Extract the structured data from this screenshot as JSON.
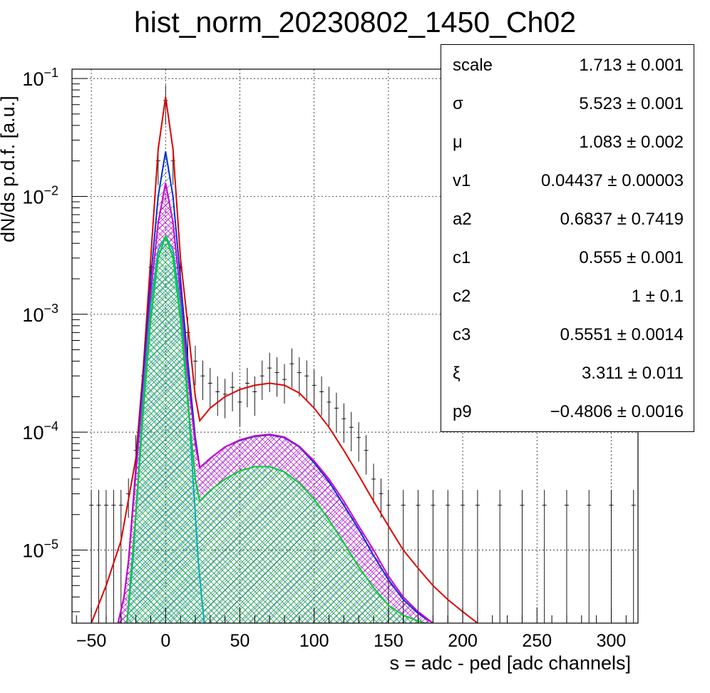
{
  "title": "hist_norm_20230802_1450_Ch02",
  "stats_box": [
    {
      "name": "scale",
      "value": "1.713 ± 0.001"
    },
    {
      "name": "σ",
      "value": "5.523 ± 0.001"
    },
    {
      "name": "μ",
      "value": "1.083 ± 0.002"
    },
    {
      "name": "v1",
      "value": "0.04437 ± 0.00003"
    },
    {
      "name": "a2",
      "value": "0.6837 ± 0.7419"
    },
    {
      "name": "c1",
      "value": "0.555 ± 0.001"
    },
    {
      "name": "c2",
      "value": "1 ± 0.1"
    },
    {
      "name": "c3",
      "value": "0.5551 ± 0.0014"
    },
    {
      "name": "ξ",
      "value": "3.311 ± 0.011"
    },
    {
      "name": "p9",
      "value": "−0.4806 ± 0.0016"
    }
  ],
  "chart_data": {
    "type": "line",
    "title": "hist_norm_20230802_1450_Ch02",
    "xlabel": "s = adc - ped [adc channels]",
    "ylabel": "dN/ds p.d.f. [a.u.]",
    "xlim": [
      -63,
      318
    ],
    "ylim": [
      2.4e-06,
      0.12
    ],
    "yscale": "log",
    "grid": true,
    "x_ticks": [
      -50,
      0,
      50,
      100,
      150,
      200,
      250,
      300
    ],
    "x_tick_labels": [
      "−50",
      "0",
      "50",
      "100",
      "150",
      "200",
      "250",
      "300"
    ],
    "y_ticks": [
      1e-05,
      0.0001,
      0.001,
      0.01,
      0.1
    ],
    "y_tick_labels": [
      {
        "base": "10",
        "exp": "−5"
      },
      {
        "base": "10",
        "exp": "−4"
      },
      {
        "base": "10",
        "exp": "−3"
      },
      {
        "base": "10",
        "exp": "−2"
      },
      {
        "base": "10",
        "exp": "−1"
      }
    ],
    "series": [
      {
        "color": "#e00000",
        "fill": "none",
        "x": [
          -50,
          -40,
          -30,
          -20,
          -15,
          -10,
          -5,
          0,
          5,
          10,
          15,
          20,
          23,
          30,
          40,
          50,
          60,
          70,
          80,
          90,
          100,
          110,
          120,
          130,
          140,
          150,
          160,
          170,
          180,
          190,
          200,
          210
        ],
        "y": [
          2.4e-06,
          5e-06,
          1.2e-05,
          6e-05,
          0.00035,
          0.003,
          0.025,
          0.07,
          0.025,
          0.003,
          0.0008,
          0.0002,
          0.000125,
          0.00016,
          0.0002,
          0.00023,
          0.00025,
          0.00026,
          0.00025,
          0.000215,
          0.00016,
          0.00011,
          7e-05,
          4.3e-05,
          2.6e-05,
          1.6e-05,
          1e-05,
          7e-06,
          5e-06,
          3.8e-06,
          3e-06,
          2.4e-06
        ]
      },
      {
        "color": "#0033cc",
        "fill": "#0033cc",
        "x": [
          -32,
          -28,
          -25,
          -20,
          -15,
          -10,
          -5,
          0,
          5,
          10,
          15,
          20,
          23,
          30,
          40,
          50,
          60,
          70,
          80,
          90,
          100,
          110,
          120,
          130,
          140,
          150,
          160,
          170,
          180
        ],
        "y": [
          2.4e-06,
          4e-06,
          8e-06,
          5e-05,
          0.0003,
          0.002,
          0.01,
          0.024,
          0.01,
          0.002,
          0.0004,
          9e-05,
          5e-05,
          6e-05,
          7.5e-05,
          8.5e-05,
          9.2e-05,
          9.5e-05,
          9e-05,
          7.5e-05,
          5.5e-05,
          3.8e-05,
          2.4e-05,
          1.5e-05,
          9e-06,
          5.6e-06,
          3.8e-06,
          2.9e-06,
          2.4e-06
        ]
      },
      {
        "color": "#cc00cc",
        "fill": "#cc00cc",
        "x": [
          -32,
          -28,
          -25,
          -20,
          -15,
          -10,
          -5,
          0,
          5,
          10,
          15,
          20,
          23,
          30,
          40,
          50,
          60,
          70,
          80,
          90,
          100,
          110,
          120,
          130,
          140,
          150,
          160,
          170,
          180
        ],
        "y": [
          2.4e-06,
          4e-06,
          8e-06,
          4.5e-05,
          0.00025,
          0.0015,
          0.006,
          0.013,
          0.006,
          0.0015,
          0.0003,
          8e-05,
          5e-05,
          6e-05,
          7.5e-05,
          8.6e-05,
          9.3e-05,
          9.6e-05,
          9.1e-05,
          7.6e-05,
          5.7e-05,
          4e-05,
          2.6e-05,
          1.6e-05,
          1e-05,
          6e-06,
          4e-06,
          3e-06,
          2.4e-06
        ]
      },
      {
        "color": "#00b0b0",
        "fill": "#00b0b0",
        "x": [
          -26,
          -22,
          -18,
          -15,
          -10,
          -5,
          0,
          5,
          10,
          15,
          18,
          22,
          26
        ],
        "y": [
          2.4e-06,
          8e-06,
          5e-05,
          0.0002,
          0.0012,
          0.0035,
          0.0046,
          0.0035,
          0.0012,
          0.0002,
          5e-05,
          8e-06,
          2.4e-06
        ]
      },
      {
        "color": "#00cc33",
        "fill": "#00cc33",
        "x": [
          -26,
          -20,
          -15,
          -10,
          -5,
          0,
          5,
          10,
          15,
          20,
          23,
          30,
          40,
          50,
          60,
          70,
          80,
          90,
          100,
          110,
          120,
          130,
          140,
          150,
          160,
          170,
          175
        ],
        "y": [
          2.4e-06,
          2e-05,
          0.00015,
          0.0009,
          0.003,
          0.0046,
          0.003,
          0.0009,
          0.00018,
          4e-05,
          2.6e-05,
          3.2e-05,
          4e-05,
          4.7e-05,
          5.1e-05,
          5.1e-05,
          4.6e-05,
          3.7e-05,
          2.7e-05,
          1.8e-05,
          1.15e-05,
          7.2e-06,
          4.8e-06,
          3.4e-06,
          2.8e-06,
          2.5e-06,
          2.4e-06
        ]
      }
    ],
    "data_points": {
      "color": "#000000",
      "x": [
        -50,
        -45,
        -40,
        -35,
        -30,
        -25,
        -20,
        -15,
        -10,
        -5,
        0,
        5,
        10,
        15,
        20,
        25,
        30,
        35,
        40,
        45,
        50,
        55,
        60,
        65,
        70,
        75,
        80,
        85,
        90,
        95,
        100,
        105,
        110,
        115,
        120,
        125,
        130,
        135,
        140,
        145,
        150,
        160,
        170,
        180,
        190,
        200,
        210,
        225,
        240,
        255,
        270,
        285,
        300,
        315
      ],
      "y": [
        2.4e-05,
        2.4e-05,
        2.4e-05,
        2.4e-05,
        2.4e-05,
        3e-05,
        7e-05,
        0.0003,
        0.0025,
        0.02,
        0.065,
        0.02,
        0.0025,
        0.0007,
        0.0004,
        0.0003,
        0.00026,
        0.00022,
        0.00021,
        0.00024,
        0.00018,
        0.00026,
        0.00022,
        0.0003,
        0.00035,
        0.00032,
        0.00028,
        0.00038,
        0.00032,
        0.0003,
        0.00025,
        0.00022,
        0.00018,
        0.00016,
        0.00013,
        0.00011,
        9e-05,
        7e-05,
        4e-05,
        3e-05,
        2.4e-05,
        2.4e-05,
        2.4e-05,
        2.4e-05,
        2.4e-05,
        2.4e-05,
        2.4e-05,
        2.4e-05,
        2.4e-05,
        2.4e-05,
        2.4e-05,
        2.4e-05,
        2.4e-05,
        2.4e-05
      ]
    }
  }
}
